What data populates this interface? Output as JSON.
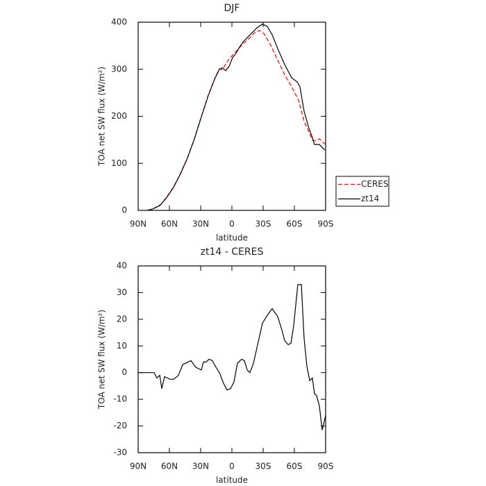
{
  "chart_data": [
    {
      "type": "line",
      "title": "DJF",
      "ylabel": "TOA net SW flux (W/m²)",
      "xlabel": "latitude",
      "x": [
        81.3,
        76,
        69.3,
        62.7,
        56,
        49.3,
        42.7,
        36,
        29.3,
        22.7,
        16,
        12,
        9.3,
        6,
        2.7,
        -0.7,
        -4,
        -7.3,
        -10.7,
        -17.3,
        -24,
        -29.3,
        -34,
        -38.7,
        -44,
        -50.7,
        -57.3,
        -62.7,
        -65.3,
        -69.3,
        -74,
        -77.3,
        -79.3,
        -84,
        -89.3
      ],
      "series": [
        {
          "name": "CERES",
          "color": "#ff0000",
          "line_style": "dashed",
          "x": [
            81,
            76,
            68,
            62.7,
            56,
            49.3,
            42.7,
            36,
            29.3,
            22.7,
            16,
            12,
            9.3,
            2.7,
            -4,
            -10.7,
            -17.3,
            -22.7,
            -26.7,
            -30.7,
            -37.3,
            -44,
            -50.7,
            -57.3,
            -64,
            -69.3,
            -74,
            -77.3,
            -80.7,
            -84,
            -87.3,
            -90
          ],
          "values": [
            0,
            3,
            13,
            28,
            50,
            79,
            112,
            153,
            200,
            245,
            283,
            301,
            299,
            322,
            338,
            354,
            367,
            380,
            382,
            376,
            351,
            319,
            288,
            263,
            234,
            189,
            167,
            149,
            148,
            152,
            145,
            140
          ]
        },
        {
          "name": "zt14",
          "color": "#000000",
          "line_style": "solid",
          "values": [
            0,
            3,
            10,
            27,
            49,
            78,
            111,
            152,
            199,
            244,
            282,
            300,
            303,
            297,
            306,
            325,
            334,
            347,
            358,
            373,
            388,
            396,
            391,
            373,
            344,
            310,
            282,
            273,
            263,
            211,
            174,
            155,
            140,
            140,
            128
          ]
        }
      ],
      "xlim": [
        90,
        -90
      ],
      "xticks": [
        {
          "value": 90,
          "label": "90N"
        },
        {
          "value": 60,
          "label": "60N"
        },
        {
          "value": 30,
          "label": "30N"
        },
        0,
        {
          "value": -30,
          "label": "30S"
        },
        {
          "value": -60,
          "label": "60S"
        },
        {
          "value": -90,
          "label": "90S"
        }
      ],
      "ylim": [
        0,
        400
      ],
      "yticks": [
        0,
        100,
        200,
        300,
        400
      ],
      "legend": "right"
    },
    {
      "type": "line",
      "title": "zt14 - CERES",
      "ylabel": "TOA net SW flux (W/m²)",
      "xlabel": "latitude",
      "x": [
        90,
        74.7,
        72,
        69.3,
        67.3,
        64.7,
        59.3,
        56,
        51.3,
        47.3,
        39.3,
        34.7,
        29.3,
        27.3,
        24.7,
        22,
        18.7,
        16,
        12,
        8,
        4.7,
        1.3,
        -2,
        -5.3,
        -9.3,
        -12,
        -14.7,
        -17.3,
        -20.7,
        -25.3,
        -29.3,
        -34,
        -38.7,
        -44,
        -48,
        -50.7,
        -54,
        -56.7,
        -59.3,
        -63.3,
        -66.7,
        -69.3,
        -72,
        -74.7,
        -77.3,
        -79.3,
        -81.3,
        -84,
        -86.7,
        -90
      ],
      "series": [
        {
          "color": "#000000",
          "line_style": "solid",
          "values": [
            0,
            0,
            -2,
            -1,
            -6,
            -1.5,
            -2.5,
            -2.5,
            -1,
            3,
            4.5,
            2,
            1,
            4,
            4,
            5,
            4.5,
            2.5,
            0,
            -4,
            -6.5,
            -6,
            -3.5,
            3.5,
            5,
            4.5,
            1,
            0,
            3.5,
            11.5,
            18.5,
            21.5,
            24,
            21,
            16,
            12,
            10.5,
            11,
            17.5,
            33,
            33,
            13,
            2.5,
            -3,
            -2,
            -8,
            -8.5,
            -12.5,
            -21.5,
            -16
          ]
        }
      ],
      "xlim": [
        90,
        -90
      ],
      "xticks": [
        {
          "value": 90,
          "label": "90N"
        },
        {
          "value": 60,
          "label": "60N"
        },
        {
          "value": 30,
          "label": "30N"
        },
        0,
        {
          "value": -30,
          "label": "30S"
        },
        {
          "value": -60,
          "label": "60S"
        },
        {
          "value": -90,
          "label": "90S"
        }
      ],
      "ylim": [
        -30,
        40
      ],
      "yticks": [
        -30,
        -20,
        -10,
        0,
        10,
        20,
        30,
        40
      ]
    }
  ]
}
